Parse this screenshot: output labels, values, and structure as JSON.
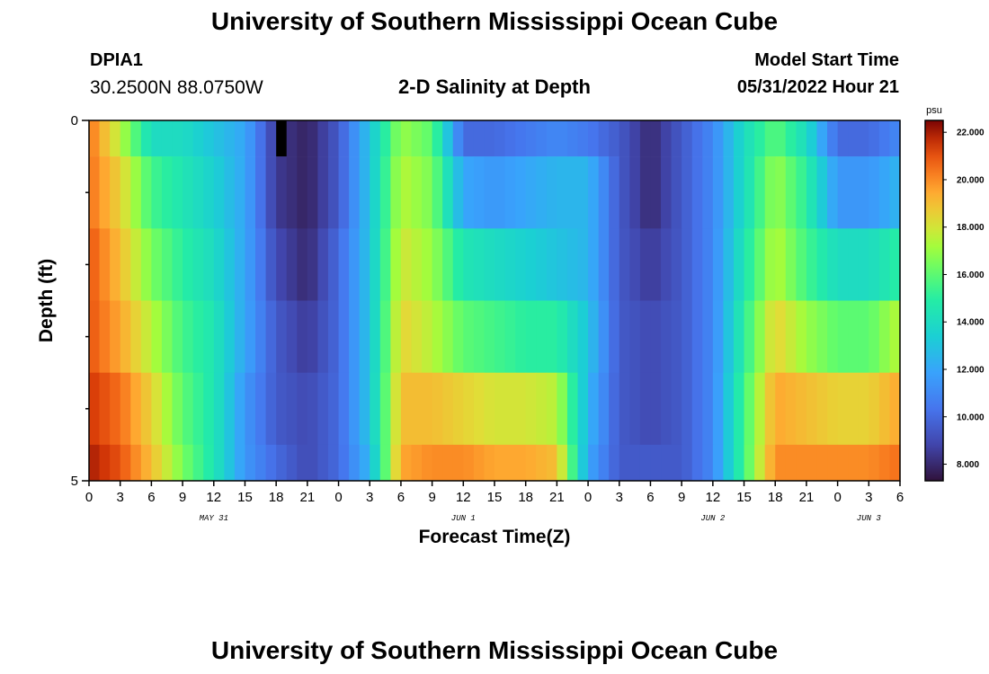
{
  "header": {
    "title": "University of Southern Mississippi Ocean Cube",
    "station": "DPIA1",
    "coords": "30.2500N  88.0750W",
    "subtitle": "2-D Salinity at Depth",
    "model_start_label": "Model Start Time",
    "model_start_value": "05/31/2022 Hour 21"
  },
  "footer": {
    "title": "University of Southern Mississippi Ocean Cube"
  },
  "chart_data": {
    "type": "heatmap",
    "title": "2-D Salinity at Depth",
    "xlabel": "Forecast Time(Z)",
    "ylabel": "Depth (ft)",
    "x_tick_labels": [
      "0",
      "3",
      "6",
      "9",
      "12",
      "15",
      "18",
      "21",
      "0",
      "3",
      "6",
      "9",
      "12",
      "15",
      "18",
      "21",
      "0",
      "3",
      "6",
      "9",
      "12",
      "15",
      "18",
      "21",
      "0",
      "3",
      "6"
    ],
    "day_labels": [
      {
        "label": "MAY 31",
        "at_tick": 4
      },
      {
        "label": "JUN 1",
        "at_tick": 12
      },
      {
        "label": "JUN 2",
        "at_tick": 20
      },
      {
        "label": "JUN 3",
        "at_tick": 25
      }
    ],
    "y_tick_labels": [
      {
        "value": 0,
        "label": "0"
      },
      {
        "value": 5,
        "label": "5"
      }
    ],
    "ylim": [
      0,
      5
    ],
    "colorbar": {
      "unit": "psu",
      "min": 7.3,
      "max": 22.5,
      "ticks": [
        "22.000",
        "20.000",
        "18.000",
        "16.000",
        "14.000",
        "12.000",
        "10.000",
        "8.000"
      ],
      "colormap": "turbo"
    },
    "depth_rows": 5,
    "time_columns": 78,
    "keyframes_hours": [
      0,
      3,
      6,
      9,
      12,
      15,
      18,
      21,
      24,
      27,
      30,
      33,
      36,
      39,
      42,
      45,
      48,
      51,
      54,
      57,
      60,
      63,
      66,
      69,
      72,
      75,
      78
    ],
    "keyframes": [
      {
        "depth_row": 0,
        "values": [
          20.5,
          17.5,
          14,
          14,
          13,
          12,
          8.5,
          7.8,
          9.5,
          13,
          17,
          16,
          10,
          10,
          10.5,
          11,
          10.5,
          9.5,
          8,
          9.5,
          11,
          14,
          16,
          14,
          10,
          10,
          11
        ]
      },
      {
        "depth_row": 1,
        "values": [
          20.5,
          18.5,
          15.5,
          14.5,
          13.5,
          12,
          8.5,
          7.8,
          9.5,
          13,
          17.5,
          16.5,
          12,
          11.5,
          12,
          12.5,
          12.5,
          9.5,
          8,
          9.5,
          11,
          14,
          17,
          15,
          11.5,
          11.5,
          12.5
        ]
      },
      {
        "depth_row": 2,
        "values": [
          21,
          19,
          16.5,
          15,
          14,
          12,
          9,
          8,
          10,
          13,
          18,
          17,
          14.5,
          14,
          13.5,
          13,
          12.5,
          9.5,
          8.5,
          9.5,
          11,
          14.5,
          17.5,
          15.5,
          14,
          14,
          15
        ]
      },
      {
        "depth_row": 3,
        "values": [
          21,
          19.5,
          17.5,
          15.5,
          14.5,
          12,
          9.5,
          8.5,
          10,
          13,
          18.5,
          17.5,
          16,
          15.5,
          15,
          15,
          13,
          9.5,
          9,
          9.5,
          11,
          15,
          18.5,
          17,
          16,
          16,
          17.5
        ]
      },
      {
        "depth_row": 4,
        "values": [
          21.5,
          20.5,
          18.5,
          16,
          14.5,
          11.5,
          9.5,
          9,
          10,
          13,
          19,
          19,
          18.5,
          18,
          18,
          17.5,
          12.5,
          9.5,
          9,
          9.5,
          11,
          15.5,
          19.5,
          19,
          18.5,
          18.5,
          19.5
        ]
      },
      {
        "depth_row": 5,
        "values": [
          22,
          21,
          19,
          16.5,
          14.5,
          11.5,
          10,
          9,
          10,
          12.5,
          19.5,
          20,
          20,
          19.5,
          19.5,
          19,
          12,
          9.5,
          9.5,
          9.5,
          11,
          15.5,
          20,
          20,
          20,
          20,
          20.5
        ]
      }
    ],
    "missing_cell": {
      "depth_row": 0,
      "hour": 18
    }
  }
}
